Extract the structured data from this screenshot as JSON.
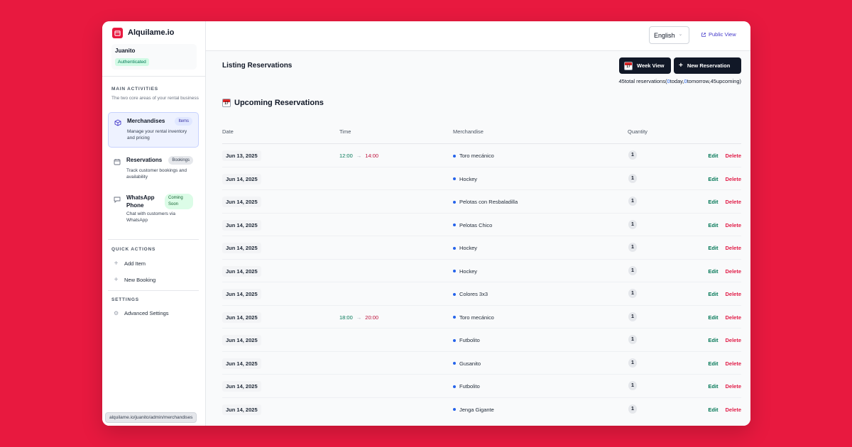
{
  "brand": {
    "name": "Alquilame.io",
    "accent": "#e8193f"
  },
  "user": {
    "name": "Juanito",
    "status": "Authenticated"
  },
  "sidebar": {
    "main_title": "MAIN ACTIVITIES",
    "main_subtitle": "The two core areas of your rental business",
    "items": [
      {
        "label": "Merchandises",
        "badge": "Items",
        "desc": "Manage your rental inventory and pricing",
        "icon": "box-icon",
        "active": true
      },
      {
        "label": "Reservations",
        "badge": "Bookings",
        "desc": "Track customer bookings and availability",
        "icon": "calendar-icon"
      },
      {
        "label": "WhatsApp Phone",
        "badge": "Coming Soon",
        "desc": "Chat with customers via WhatsApp",
        "icon": "chat-icon"
      }
    ],
    "quick_title": "QUICK ACTIONS",
    "quick": [
      {
        "label": "Add Item"
      },
      {
        "label": "New Booking"
      }
    ],
    "settings_title": "SETTINGS",
    "settings": [
      {
        "label": "Advanced Settings"
      }
    ]
  },
  "status_url": "alquilame.io/juanito/admin/merchandises",
  "topbar": {
    "language": "English",
    "public_view": "Public View"
  },
  "page": {
    "title": "Listing Reservations",
    "week_view": "Week View",
    "new_reservation": "New Reservation",
    "summary": {
      "total": "45",
      "total_label": "total reservations(",
      "today": "0",
      "today_label": "today,",
      "tomorrow": "0",
      "tomorrow_label": "tomorrow,",
      "upcoming": "45",
      "upcoming_label": "upcoming)"
    },
    "section_title": "Upcoming Reservations"
  },
  "table": {
    "headers": {
      "date": "Date",
      "time": "Time",
      "merchandise": "Merchandise",
      "quantity": "Quantity"
    },
    "edit_label": "Edit",
    "delete_label": "Delete",
    "rows": [
      {
        "date": "Jun 13, 2025",
        "start": "12:00",
        "end": "14:00",
        "merch": "Toro mecánico",
        "qty": "1"
      },
      {
        "date": "Jun 14, 2025",
        "start": "",
        "end": "",
        "merch": "Hockey",
        "qty": "1"
      },
      {
        "date": "Jun 14, 2025",
        "start": "",
        "end": "",
        "merch": "Pelotas con Resbaladilla",
        "qty": "1"
      },
      {
        "date": "Jun 14, 2025",
        "start": "",
        "end": "",
        "merch": "Pelotas Chico",
        "qty": "1"
      },
      {
        "date": "Jun 14, 2025",
        "start": "",
        "end": "",
        "merch": "Hockey",
        "qty": "1"
      },
      {
        "date": "Jun 14, 2025",
        "start": "",
        "end": "",
        "merch": "Hockey",
        "qty": "1"
      },
      {
        "date": "Jun 14, 2025",
        "start": "",
        "end": "",
        "merch": "Colores 3x3",
        "qty": "1"
      },
      {
        "date": "Jun 14, 2025",
        "start": "18:00",
        "end": "20:00",
        "merch": "Toro mecánico",
        "qty": "1"
      },
      {
        "date": "Jun 14, 2025",
        "start": "",
        "end": "",
        "merch": "Futbolito",
        "qty": "1"
      },
      {
        "date": "Jun 14, 2025",
        "start": "",
        "end": "",
        "merch": "Gusanito",
        "qty": "1"
      },
      {
        "date": "Jun 14, 2025",
        "start": "",
        "end": "",
        "merch": "Futbolito",
        "qty": "1"
      },
      {
        "date": "Jun 14, 2025",
        "start": "",
        "end": "",
        "merch": "Jenga Gigante",
        "qty": "1"
      }
    ]
  }
}
